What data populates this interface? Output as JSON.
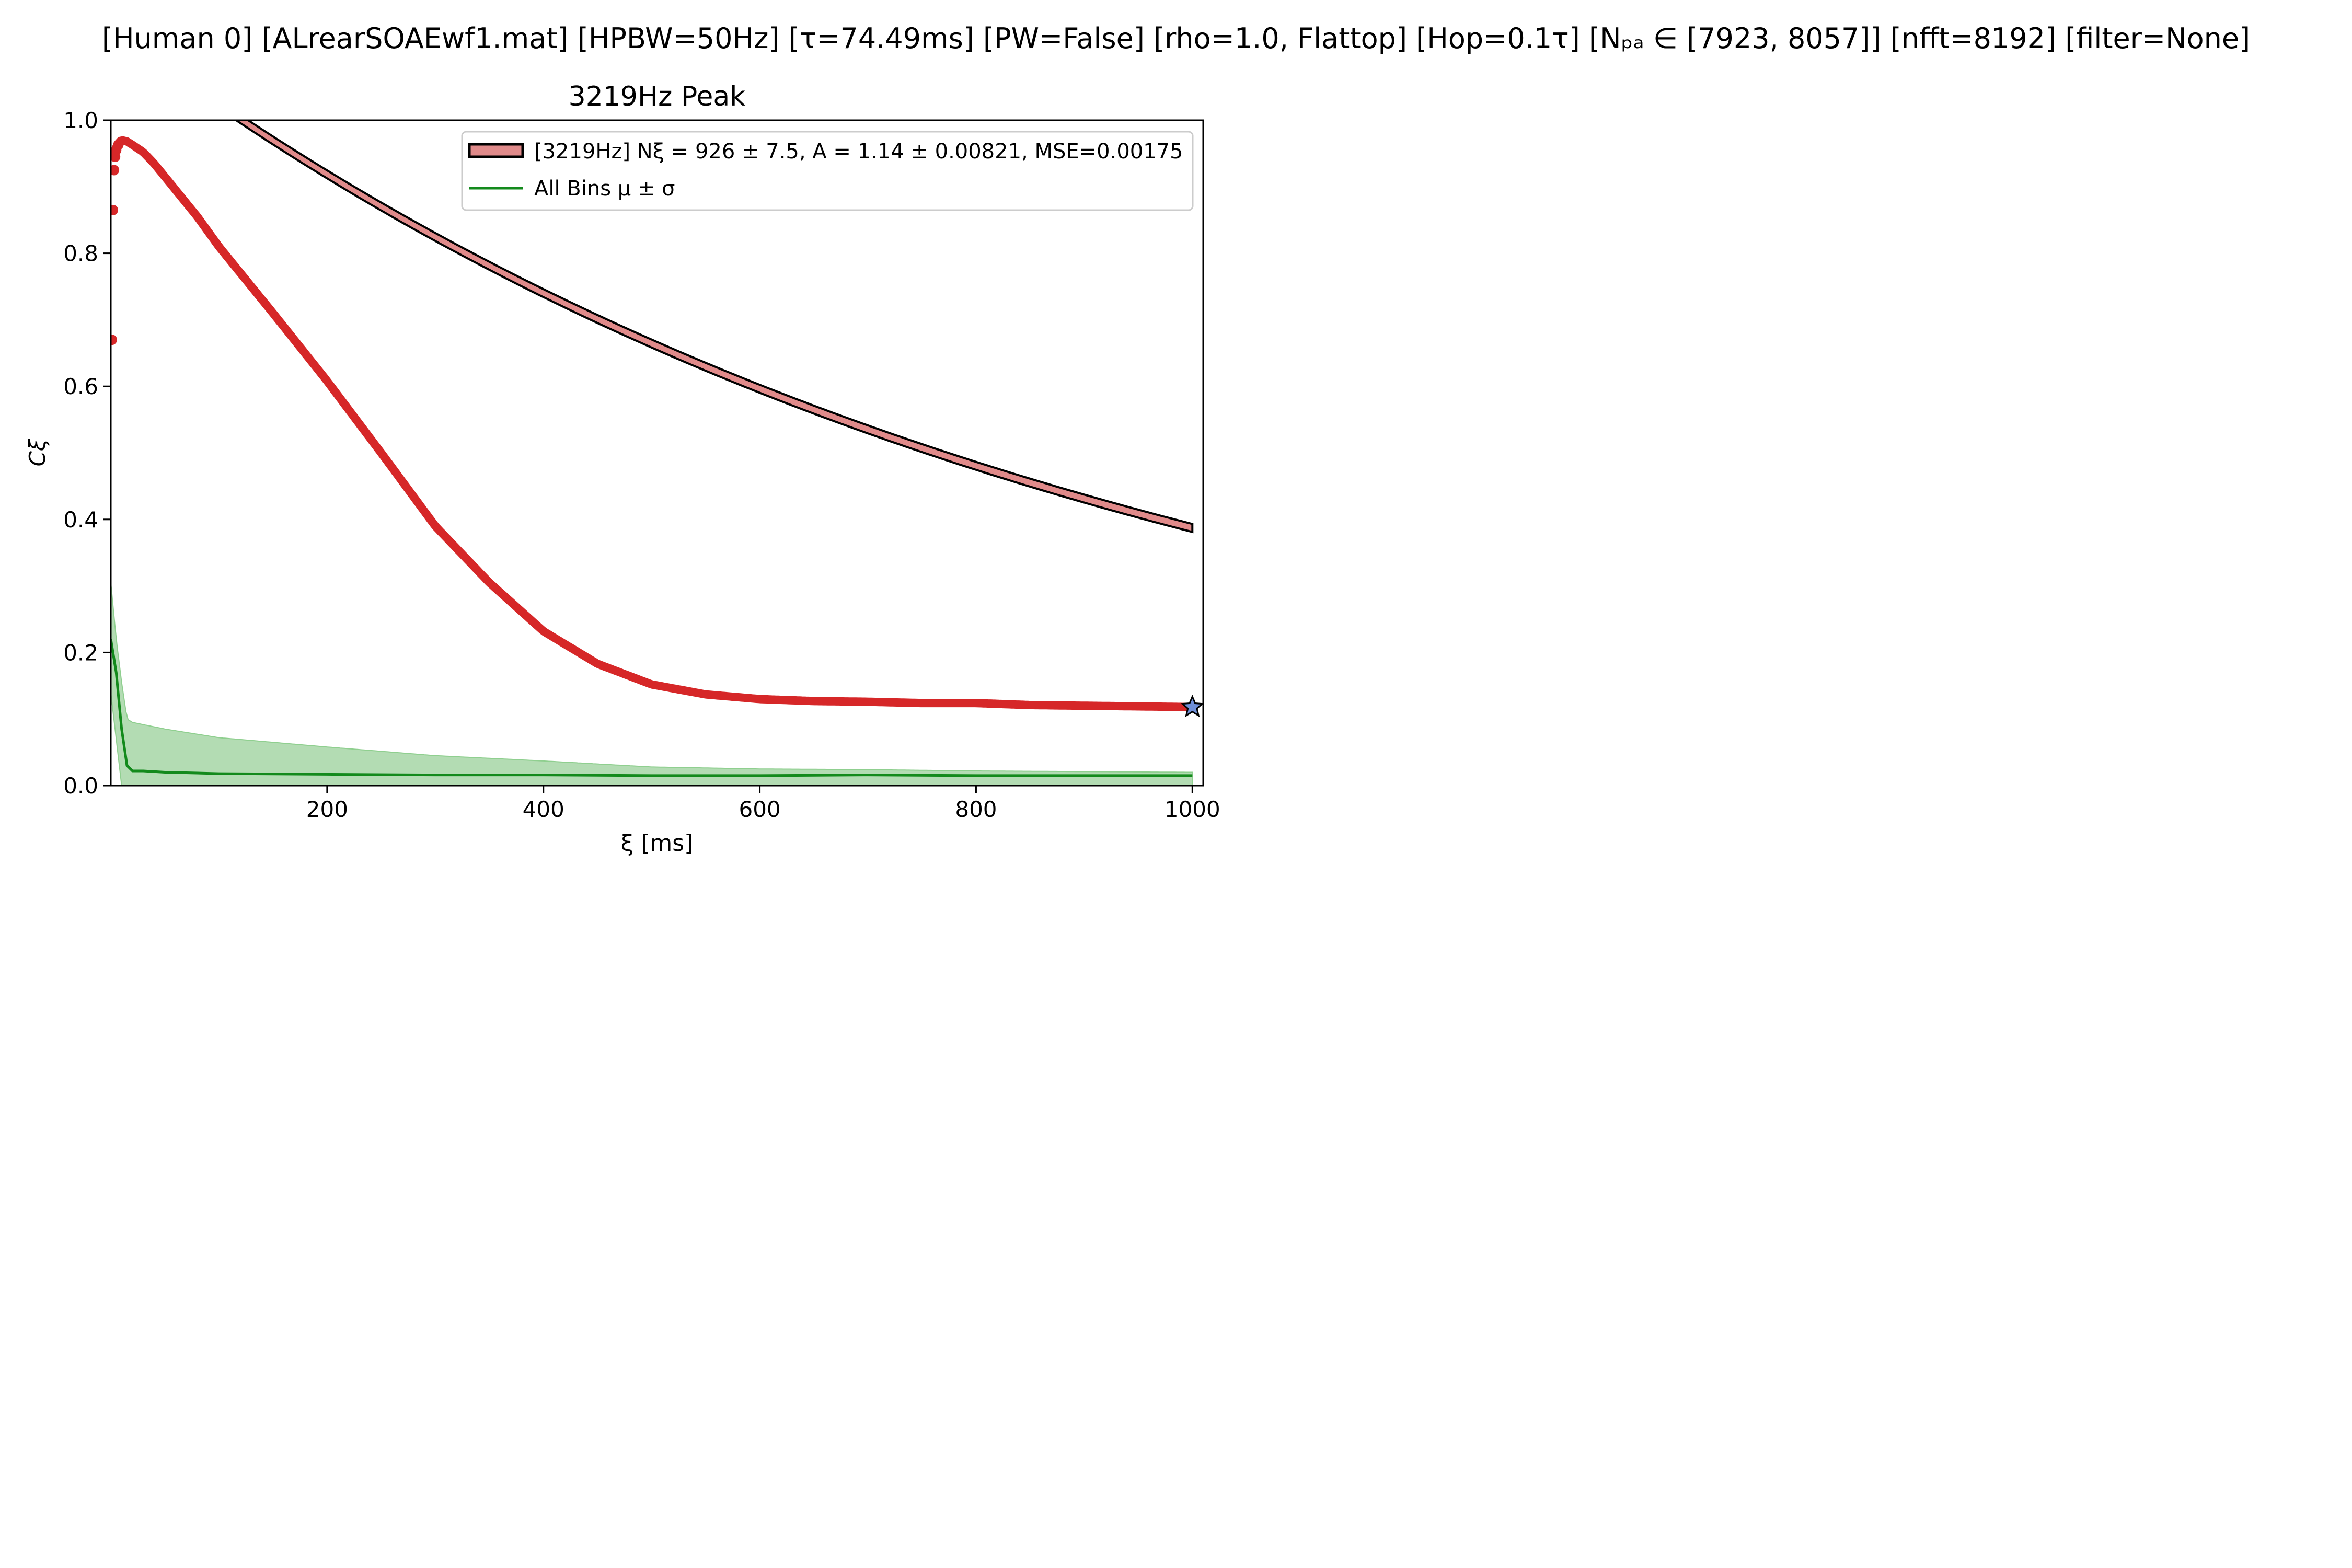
{
  "figure": {
    "suptitle": "[Human 0]   [ALrearSOAEwf1.mat]   [HPBW=50Hz]   [τ=74.49ms]   [PW=False]   [rho=1.0, Flattop]   [Hop=0.1τ]   [Nₚₐ ∈ [7923, 8057]]   [nfft=8192]   [filter=None]"
  },
  "chart_data": {
    "type": "line",
    "title": "3219Hz Peak",
    "xlabel": "ξ [ms]",
    "ylabel": "Cξ",
    "xlim": [
      0,
      1010
    ],
    "ylim": [
      0.0,
      1.0
    ],
    "xticks": [
      200,
      400,
      600,
      800,
      1000
    ],
    "xtick_labels": [
      "200",
      "400",
      "600",
      "800",
      "1000"
    ],
    "yticks": [
      0.0,
      0.2,
      0.4,
      0.6,
      0.8,
      1.0
    ],
    "ytick_labels": [
      "0.0",
      "0.2",
      "0.4",
      "0.6",
      "0.8",
      "1.0"
    ],
    "grid": false,
    "legend_position": "top-right",
    "legend": [
      {
        "label": "[3219Hz] Nξ = 926 ± 7.5, A = 1.14 ± 0.00821, MSE=0.00175",
        "color": "#e08a8a",
        "edge": "#000000",
        "kind": "band"
      },
      {
        "label": "All Bins μ ± σ",
        "color": "#138a1c",
        "kind": "line"
      }
    ],
    "fit": {
      "start_x": 70,
      "amplitude": 1.14,
      "decay": 926,
      "band_width": 0.012,
      "fill": "#e08a8a",
      "edge": "#000000"
    },
    "coherence": {
      "color": "#d62728",
      "points": [
        [
          0,
          0.67
        ],
        [
          1,
          0.865
        ],
        [
          2,
          0.925
        ],
        [
          3,
          0.945
        ],
        [
          4,
          0.955
        ],
        [
          6,
          0.963
        ],
        [
          8,
          0.968
        ],
        [
          10,
          0.97
        ],
        [
          15,
          0.968
        ],
        [
          20,
          0.963
        ],
        [
          30,
          0.952
        ],
        [
          40,
          0.935
        ],
        [
          50,
          0.915
        ],
        [
          60,
          0.895
        ],
        [
          70,
          0.875
        ],
        [
          80,
          0.855
        ],
        [
          100,
          0.81
        ],
        [
          150,
          0.71
        ],
        [
          200,
          0.608
        ],
        [
          250,
          0.5
        ],
        [
          300,
          0.39
        ],
        [
          350,
          0.305
        ],
        [
          400,
          0.232
        ],
        [
          450,
          0.183
        ],
        [
          500,
          0.152
        ],
        [
          550,
          0.137
        ],
        [
          600,
          0.13
        ],
        [
          650,
          0.127
        ],
        [
          700,
          0.126
        ],
        [
          750,
          0.124
        ],
        [
          800,
          0.124
        ],
        [
          850,
          0.121
        ],
        [
          900,
          0.12
        ],
        [
          950,
          0.119
        ],
        [
          1000,
          0.118
        ]
      ],
      "end_marker": {
        "x": 1000,
        "y": 0.118,
        "color": "#6f8fd8"
      }
    },
    "all_bins": {
      "mean_color": "#138a1c",
      "band_color": "#b3dcb3",
      "mean": [
        [
          0,
          0.22
        ],
        [
          5,
          0.17
        ],
        [
          10,
          0.085
        ],
        [
          15,
          0.03
        ],
        [
          20,
          0.022
        ],
        [
          30,
          0.022
        ],
        [
          50,
          0.02
        ],
        [
          100,
          0.018
        ],
        [
          200,
          0.017
        ],
        [
          300,
          0.016
        ],
        [
          400,
          0.016
        ],
        [
          500,
          0.015
        ],
        [
          600,
          0.015
        ],
        [
          700,
          0.016
        ],
        [
          800,
          0.015
        ],
        [
          900,
          0.015
        ],
        [
          1000,
          0.015
        ]
      ],
      "upper": [
        [
          0,
          0.305
        ],
        [
          5,
          0.22
        ],
        [
          10,
          0.155
        ],
        [
          15,
          0.1
        ],
        [
          20,
          0.095
        ],
        [
          50,
          0.085
        ],
        [
          100,
          0.072
        ],
        [
          200,
          0.058
        ],
        [
          300,
          0.045
        ],
        [
          400,
          0.037
        ],
        [
          500,
          0.028
        ],
        [
          600,
          0.025
        ],
        [
          700,
          0.024
        ],
        [
          800,
          0.022
        ],
        [
          900,
          0.021
        ],
        [
          1000,
          0.02
        ]
      ],
      "lower": [
        [
          0,
          0.14
        ],
        [
          5,
          0.07
        ],
        [
          10,
          0.0
        ],
        [
          1000,
          0.0
        ]
      ]
    }
  }
}
